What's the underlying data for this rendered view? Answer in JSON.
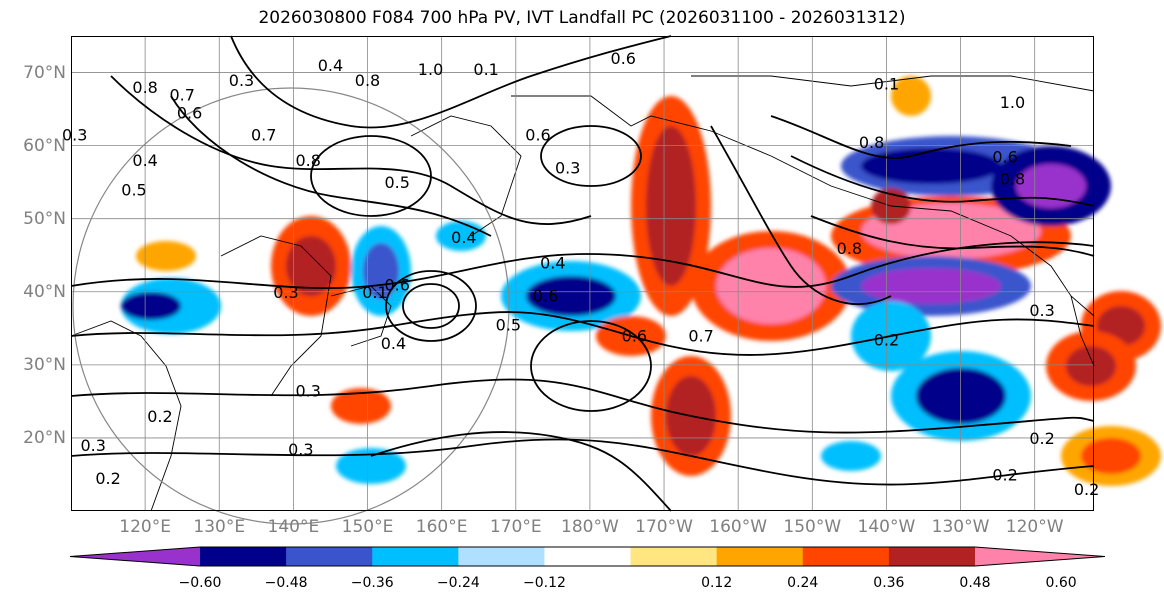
{
  "title": "2026030800 F084 700 hPa PV, IVT Landfall PC (2026031100 - 2026031312)",
  "lat_labels": [
    {
      "text": "70°N",
      "lat": 70
    },
    {
      "text": "60°N",
      "lat": 60
    },
    {
      "text": "50°N",
      "lat": 50
    },
    {
      "text": "40°N",
      "lat": 40
    },
    {
      "text": "30°N",
      "lat": 30
    },
    {
      "text": "20°N",
      "lat": 20
    }
  ],
  "lon_labels": [
    {
      "text": "120°E",
      "lon": 120
    },
    {
      "text": "130°E",
      "lon": 130
    },
    {
      "text": "140°E",
      "lon": 140
    },
    {
      "text": "150°E",
      "lon": 150
    },
    {
      "text": "160°E",
      "lon": 160
    },
    {
      "text": "170°E",
      "lon": 170
    },
    {
      "text": "180°W",
      "lon": 180
    },
    {
      "text": "170°W",
      "lon": 190
    },
    {
      "text": "160°W",
      "lon": 200
    },
    {
      "text": "150°W",
      "lon": 210
    },
    {
      "text": "140°W",
      "lon": 220
    },
    {
      "text": "130°W",
      "lon": 230
    },
    {
      "text": "120°W",
      "lon": 240
    }
  ],
  "extent": {
    "lon_min": 110,
    "lon_max": 248,
    "lat_min": 10,
    "lat_max": 75
  },
  "colorbar": {
    "colors": [
      "#9932cc",
      "#00008b",
      "#3a55cc",
      "#00bfff",
      "#b0e0ff",
      "#ffffff",
      "#ffe680",
      "#ffa500",
      "#ff4500",
      "#b22222",
      "#ff82ab"
    ],
    "labels": [
      "−0.60",
      "−0.48",
      "−0.36",
      "−0.24",
      "−0.12",
      "0.12",
      "0.24",
      "0.36",
      "0.48",
      "0.60"
    ]
  },
  "contour_labels": [
    {
      "text": "0.6",
      "lon": 184.5,
      "lat": 72.0
    },
    {
      "text": "1.0",
      "lon": 158.5,
      "lat": 70.5
    },
    {
      "text": "0.1",
      "lon": 166.0,
      "lat": 70.5
    },
    {
      "text": "0.8",
      "lon": 120.0,
      "lat": 68.0
    },
    {
      "text": "0.7",
      "lon": 125.0,
      "lat": 67.0
    },
    {
      "text": "0.6",
      "lon": 126.0,
      "lat": 64.5
    },
    {
      "text": "0.3",
      "lon": 133.0,
      "lat": 69.0
    },
    {
      "text": "0.4",
      "lon": 145.0,
      "lat": 71.0
    },
    {
      "text": "0.8",
      "lon": 150.0,
      "lat": 69.0
    },
    {
      "text": "0.7",
      "lon": 136.0,
      "lat": 61.5
    },
    {
      "text": "0.8",
      "lon": 142.0,
      "lat": 58.0
    },
    {
      "text": "0.6",
      "lon": 173.0,
      "lat": 61.5
    },
    {
      "text": "0.3",
      "lon": 177.0,
      "lat": 57.0
    },
    {
      "text": "0.5",
      "lon": 154.0,
      "lat": 55.0
    },
    {
      "text": "0.4",
      "lon": 163.0,
      "lat": 47.5
    },
    {
      "text": "0.4",
      "lon": 175.0,
      "lat": 44.0
    },
    {
      "text": "0.6",
      "lon": 174.0,
      "lat": 39.5
    },
    {
      "text": "0.1",
      "lon": 151.0,
      "lat": 40.0
    },
    {
      "text": "0.6",
      "lon": 154.0,
      "lat": 41.0
    },
    {
      "text": "0.3",
      "lon": 139.0,
      "lat": 40.0
    },
    {
      "text": "0.4",
      "lon": 153.5,
      "lat": 33.0
    },
    {
      "text": "0.5",
      "lon": 169.0,
      "lat": 35.5
    },
    {
      "text": "0.6",
      "lon": 186.0,
      "lat": 34.0
    },
    {
      "text": "0.7",
      "lon": 195.0,
      "lat": 34.0
    },
    {
      "text": "0.3",
      "lon": 142.0,
      "lat": 26.5
    },
    {
      "text": "0.2",
      "lon": 122.0,
      "lat": 23.0
    },
    {
      "text": "0.3",
      "lon": 141.0,
      "lat": 18.5
    },
    {
      "text": "0.2",
      "lon": 115.0,
      "lat": 14.5
    },
    {
      "text": "0.3",
      "lon": 113.0,
      "lat": 19.0
    },
    {
      "text": "0.3",
      "lon": 110.5,
      "lat": 61.5
    },
    {
      "text": "0.4",
      "lon": 120.0,
      "lat": 58.0
    },
    {
      "text": "0.5",
      "lon": 118.5,
      "lat": 54.0
    },
    {
      "text": "0.1",
      "lon": 220.0,
      "lat": 68.5
    },
    {
      "text": "1.0",
      "lon": 237.0,
      "lat": 66.0
    },
    {
      "text": "0.8",
      "lon": 218.0,
      "lat": 60.5
    },
    {
      "text": "0.6",
      "lon": 236.0,
      "lat": 58.5
    },
    {
      "text": "0.8",
      "lon": 237.0,
      "lat": 55.5
    },
    {
      "text": "0.8",
      "lon": 215.0,
      "lat": 46.0
    },
    {
      "text": "0.2",
      "lon": 220.0,
      "lat": 33.5
    },
    {
      "text": "0.3",
      "lon": 241.0,
      "lat": 37.5
    },
    {
      "text": "0.2",
      "lon": 241.0,
      "lat": 20.0
    },
    {
      "text": "0.2",
      "lon": 236.0,
      "lat": 15.0
    },
    {
      "text": "0.2",
      "lon": 247.0,
      "lat": 13.0
    }
  ]
}
